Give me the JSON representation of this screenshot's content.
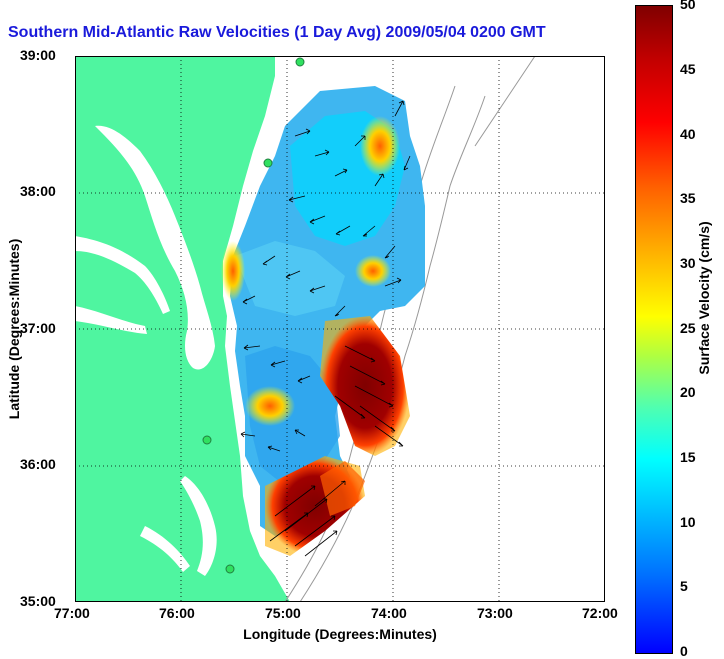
{
  "title": "Southern Mid-Atlantic Raw Velocities (1 Day Avg) 2009/05/04 0200 GMT",
  "xlabel": "Longitude (Degrees:Minutes)",
  "ylabel": "Latitude (Degrees:Minutes)",
  "x_ticks": [
    "77:00",
    "76:00",
    "75:00",
    "74:00",
    "73:00",
    "72:00"
  ],
  "y_ticks": [
    "39:00",
    "38:00",
    "37:00",
    "36:00",
    "35:00"
  ],
  "colorbar": {
    "label": "Surface Velocity (cm/s)",
    "ticks": [
      "50",
      "45",
      "40",
      "35",
      "30",
      "25",
      "20",
      "15",
      "10",
      "5",
      "0"
    ],
    "range": [
      0,
      50
    ]
  },
  "colors": {
    "land": "#4ff5a0",
    "title": "#1a1adb",
    "grid": "#000000"
  },
  "extent": {
    "lon": [
      -77,
      -72
    ],
    "lat": [
      35,
      39
    ]
  }
}
